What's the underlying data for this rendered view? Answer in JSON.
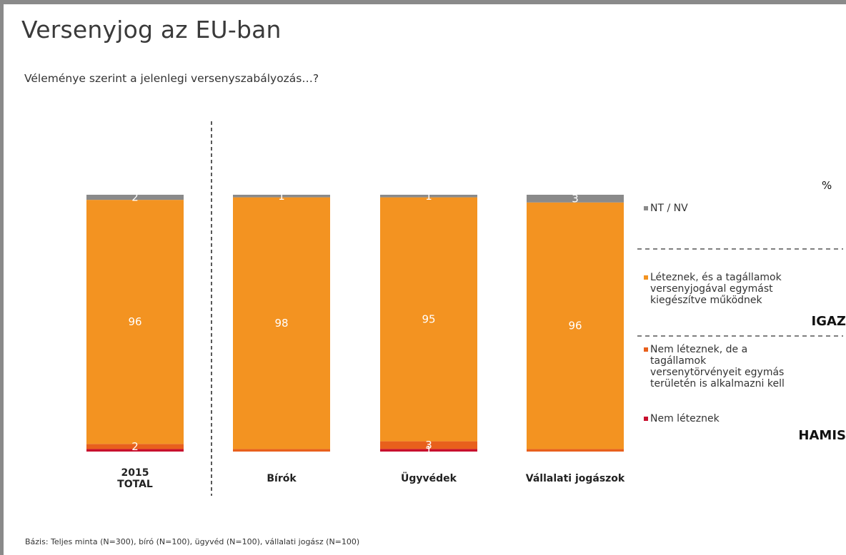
{
  "title": "Versenyjog az EU-ban",
  "subtitle": "Véleménye szerint a jelenlegi versenyszabályozás…?",
  "footnote": "Bázis: Teljes minta (N=300), bíró (N=100), ügyvéd (N=100), vállalati jogász (N=100)",
  "unit_label": "%",
  "verdicts": {
    "true_label": "IGAZ",
    "false_label": "HAMIS"
  },
  "colors": {
    "nt_nv": "#8a8a8a",
    "leteznek": "#f39321",
    "nem_leteznek_de": "#e8601c",
    "nem_leteznek": "#c8102e"
  },
  "chart_data": {
    "type": "bar",
    "stacked": true,
    "ylim": [
      0,
      100
    ],
    "categories": [
      [
        "2015",
        "TOTAL"
      ],
      [
        "Bírók"
      ],
      [
        "Ügyvédek"
      ],
      [
        "Vállalati jogászok"
      ]
    ],
    "series": [
      {
        "name": "Nem léteznek",
        "color_key": "nem_leteznek",
        "values": [
          1,
          0,
          1,
          0
        ],
        "labels": [
          "",
          "",
          "1",
          ""
        ]
      },
      {
        "name": "Nem léteznek, de a tagállamok versenytörvényeit egymás területén is alkalmazni kell",
        "color_key": "nem_leteznek_de",
        "values": [
          2,
          1,
          3,
          1
        ],
        "labels": [
          "2",
          "",
          "3",
          ""
        ]
      },
      {
        "name": "Léteznek, és a tagállamok versenyjogával egymást kiegészítve működnek",
        "color_key": "leteznek",
        "values": [
          96,
          98,
          95,
          96
        ],
        "labels": [
          "96",
          "98",
          "95",
          "96"
        ]
      },
      {
        "name": "NT / NV",
        "color_key": "nt_nv",
        "values": [
          2,
          1,
          1,
          3
        ],
        "labels": [
          "2",
          "1",
          "1",
          "3"
        ]
      }
    ],
    "legend": [
      {
        "color_key": "nt_nv",
        "lines": [
          "NT / NV"
        ]
      },
      {
        "color_key": "leteznek",
        "lines": [
          "Léteznek, és a tagállamok",
          "versenyjogával egymást",
          "kiegészítve működnek"
        ]
      },
      {
        "color_key": "nem_leteznek_de",
        "lines": [
          "Nem léteznek, de a",
          "tagállamok",
          "versenytörvényeit egymás",
          "területén is alkalmazni kell"
        ]
      },
      {
        "color_key": "nem_leteznek",
        "lines": [
          "Nem léteznek"
        ]
      }
    ],
    "legend_position": "right"
  }
}
